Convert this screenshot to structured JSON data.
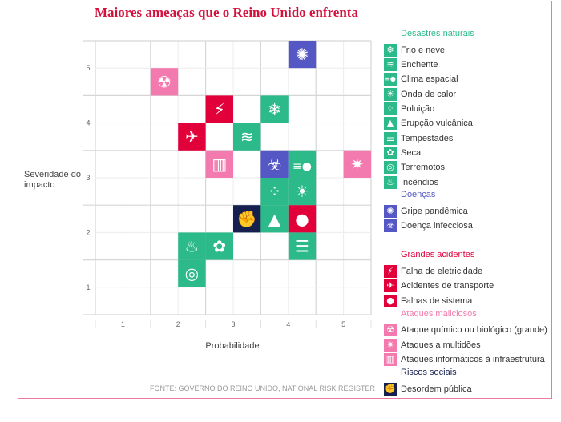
{
  "title": "Maiores ameaças que o Reino Unido enfrenta",
  "source": "FONTE: GOVERNO DO REINO UNIDO, NATIONAL RISK REGISTER",
  "colors": {
    "natural": "#2dba8a",
    "disease": "#5457c4",
    "accident": "#e2003b",
    "malicious": "#f37aae",
    "social": "#15204f",
    "title": "#d4103d",
    "frame": "#e97aa3"
  },
  "chart_data": {
    "type": "heatmap",
    "title": "Maiores ameaças que o Reino Unido enfrenta",
    "xlabel": "Probabilidade",
    "ylabel": "Severidade do impacto",
    "xlim": [
      0.5,
      5.5
    ],
    "ylim": [
      0.5,
      5.5
    ],
    "xticks": [
      "1",
      "2",
      "3",
      "4",
      "5"
    ],
    "yticks": [
      "1",
      "2",
      "3",
      "4",
      "5"
    ],
    "grid": true,
    "legend": "right",
    "risks": [
      {
        "name": "Gripe pandêmica",
        "group": "disease",
        "icon": "virus-icon",
        "x": [
          4.0,
          4.5
        ],
        "y": [
          5.0,
          5.5
        ]
      },
      {
        "name": "Ataque químico ou biológico (grande)",
        "group": "malicious",
        "icon": "radiation-icon",
        "x": [
          1.5,
          2.0
        ],
        "y": [
          4.5,
          5.0
        ]
      },
      {
        "name": "Falha de eletricidade",
        "group": "accident",
        "icon": "lightning-icon",
        "x": [
          2.5,
          3.0
        ],
        "y": [
          4.0,
          4.5
        ]
      },
      {
        "name": "Frio e neve",
        "group": "natural",
        "icon": "snowflake-icon",
        "x": [
          3.5,
          4.0
        ],
        "y": [
          4.0,
          4.5
        ]
      },
      {
        "name": "Acidentes de transporte",
        "group": "accident",
        "icon": "plane-crash-icon",
        "x": [
          2.0,
          2.5
        ],
        "y": [
          3.5,
          4.0
        ]
      },
      {
        "name": "Enchente",
        "group": "natural",
        "icon": "waves-icon",
        "x": [
          3.0,
          3.5
        ],
        "y": [
          3.5,
          4.0
        ]
      },
      {
        "name": "Ataques informáticos à infraestrutura",
        "group": "malicious",
        "icon": "factory-icon",
        "x": [
          2.5,
          3.0
        ],
        "y": [
          3.0,
          3.5
        ]
      },
      {
        "name": "Doença infecciosa",
        "group": "disease",
        "icon": "biohazard-icon",
        "x": [
          3.5,
          4.0
        ],
        "y": [
          3.0,
          3.5
        ]
      },
      {
        "name": "Clima espacial",
        "group": "natural",
        "icon": "comet-icon",
        "x": [
          4.0,
          4.5
        ],
        "y": [
          3.0,
          3.5
        ]
      },
      {
        "name": "Ataques a multidões",
        "group": "malicious",
        "icon": "explosion-icon",
        "x": [
          5.0,
          5.5
        ],
        "y": [
          3.0,
          3.5
        ]
      },
      {
        "name": "Poluição",
        "group": "natural",
        "icon": "dots-icon",
        "x": [
          3.5,
          4.0
        ],
        "y": [
          2.5,
          3.0
        ]
      },
      {
        "name": "Onda de calor",
        "group": "natural",
        "icon": "sun-icon",
        "x": [
          4.0,
          4.5
        ],
        "y": [
          2.5,
          3.0
        ]
      },
      {
        "name": "Desordem pública",
        "group": "social",
        "icon": "fist-icon",
        "x": [
          3.0,
          3.5
        ],
        "y": [
          2.0,
          2.5
        ]
      },
      {
        "name": "Erupção vulcânica",
        "group": "natural",
        "icon": "volcano-icon",
        "x": [
          3.5,
          4.0
        ],
        "y": [
          2.0,
          2.5
        ]
      },
      {
        "name": "Falhas de sistema",
        "group": "accident",
        "icon": "drop-icon",
        "x": [
          4.0,
          4.5
        ],
        "y": [
          2.0,
          2.5
        ]
      },
      {
        "name": "Incêndios",
        "group": "natural",
        "icon": "fire-icon",
        "x": [
          2.0,
          2.5
        ],
        "y": [
          1.5,
          2.0
        ]
      },
      {
        "name": "Seca",
        "group": "natural",
        "icon": "drought-icon",
        "x": [
          2.5,
          3.0
        ],
        "y": [
          1.5,
          2.0
        ]
      },
      {
        "name": "Tempestades",
        "group": "natural",
        "icon": "tornado-icon",
        "x": [
          4.0,
          4.5
        ],
        "y": [
          1.5,
          2.0
        ]
      },
      {
        "name": "Terremotos",
        "group": "natural",
        "icon": "earthquake-icon",
        "x": [
          2.0,
          2.5
        ],
        "y": [
          1.0,
          1.5
        ]
      }
    ]
  },
  "legend": [
    {
      "heading": "Desastres naturais",
      "group": "natural",
      "items": [
        {
          "label": "Frio e neve",
          "icon": "snowflake-icon"
        },
        {
          "label": "Enchente",
          "icon": "waves-icon"
        },
        {
          "label": "Clima espacial",
          "icon": "comet-icon"
        },
        {
          "label": "Onda de calor",
          "icon": "sun-icon"
        },
        {
          "label": "Poluição",
          "icon": "dots-icon"
        },
        {
          "label": "Erupção vulcânica",
          "icon": "volcano-icon"
        },
        {
          "label": "Tempestades",
          "icon": "tornado-icon"
        },
        {
          "label": "Seca",
          "icon": "drought-icon"
        },
        {
          "label": "Terremotos",
          "icon": "earthquake-icon"
        },
        {
          "label": "Incêndios",
          "icon": "fire-icon"
        }
      ]
    },
    {
      "heading": "Doenças",
      "group": "disease",
      "items": [
        {
          "label": "Gripe pandêmica",
          "icon": "virus-icon"
        },
        {
          "label": "Doença infecciosa",
          "icon": "biohazard-icon"
        }
      ]
    },
    {
      "heading": "Grandes acidentes",
      "group": "accident",
      "items": [
        {
          "label": "Falha de eletricidade",
          "icon": "lightning-icon"
        },
        {
          "label": "Acidentes de transporte",
          "icon": "plane-crash-icon"
        },
        {
          "label": "Falhas de sistema",
          "icon": "drop-icon"
        }
      ]
    },
    {
      "heading": "Ataques maliciosos",
      "group": "malicious",
      "items": [
        {
          "label": "Ataque químico ou biológico (grande)",
          "icon": "radiation-icon"
        },
        {
          "label": "Ataques a multidões",
          "icon": "explosion-icon"
        },
        {
          "label": "Ataques informáticos à infraestrutura",
          "icon": "factory-icon"
        }
      ]
    },
    {
      "heading": "Riscos sociais",
      "group": "social",
      "items": [
        {
          "label": "Desordem pública",
          "icon": "fist-icon"
        }
      ]
    }
  ]
}
